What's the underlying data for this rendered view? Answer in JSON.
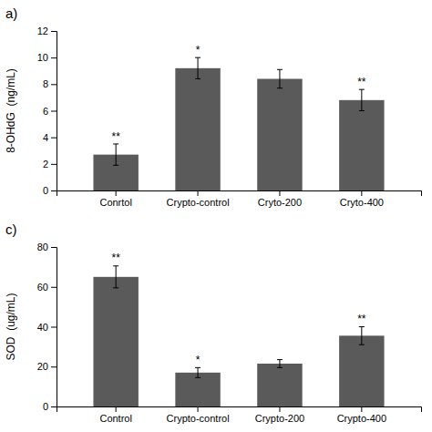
{
  "chart_data": [
    {
      "type": "bar",
      "title": "a)",
      "categories": [
        "Conrtol",
        "Crypto-control",
        "Cryto-200",
        "Cryto-400"
      ],
      "values": [
        2.7,
        9.2,
        8.4,
        6.8
      ],
      "errors": [
        0.8,
        0.8,
        0.7,
        0.8
      ],
      "annotations": [
        "**",
        "*",
        null,
        "**"
      ],
      "y_label": "8-OHdG  (ng/mL)",
      "color": "#5a5a5a",
      "ylim": [
        0,
        12
      ],
      "yticks": [
        0,
        2,
        4,
        6,
        8,
        10,
        12
      ],
      "grid": false
    },
    {
      "type": "bar",
      "title": "c)",
      "categories": [
        "Control",
        "Crypto-control",
        "Crypto-200",
        "Crypto-400"
      ],
      "values": [
        65.0,
        17.0,
        21.5,
        35.5
      ],
      "errors": [
        5.5,
        2.5,
        2.0,
        4.5
      ],
      "annotations": [
        "**",
        "*",
        null,
        "**"
      ],
      "y_label": "SOD  (ug/mL)",
      "color": "#5a5a5a",
      "ylim": [
        0,
        80
      ],
      "yticks": [
        0,
        20,
        40,
        60,
        80
      ],
      "grid": false
    }
  ]
}
